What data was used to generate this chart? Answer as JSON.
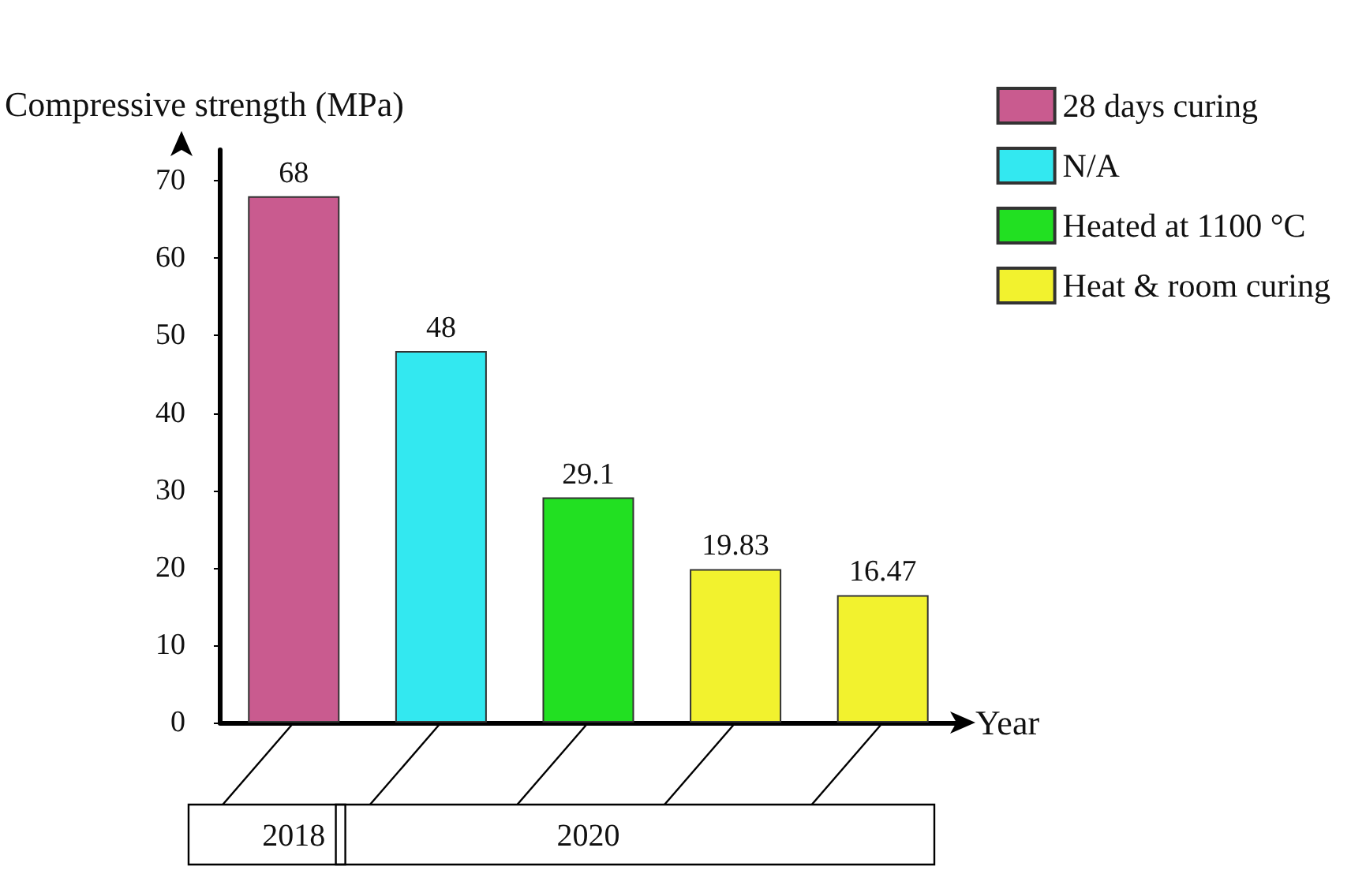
{
  "chart_data": {
    "type": "bar",
    "xlabel": "Year",
    "ylabel": "Compressive strength (MPa)",
    "categories": [
      "2018",
      null,
      "2020",
      null,
      null
    ],
    "series": [
      {
        "name": "28 days curing",
        "color": "#c95b8f",
        "values": [
          68,
          null,
          null,
          null,
          null
        ]
      },
      {
        "name": "N/A",
        "color": "#33e8f0",
        "values": [
          null,
          48,
          null,
          null,
          null
        ]
      },
      {
        "name": "Heated at 1100 °C",
        "color": "#22e022",
        "values": [
          null,
          null,
          29.1,
          null,
          null
        ]
      },
      {
        "name": "Heat & room curing",
        "color": "#f2f22e",
        "values": [
          null,
          null,
          null,
          19.83,
          16.47
        ]
      }
    ],
    "stacked": true,
    "data_labels": true,
    "ylim": [
      0,
      74
    ],
    "yticks": [
      0,
      10,
      20,
      30,
      40,
      50,
      60,
      70
    ],
    "grid": false,
    "legend": "top right"
  }
}
